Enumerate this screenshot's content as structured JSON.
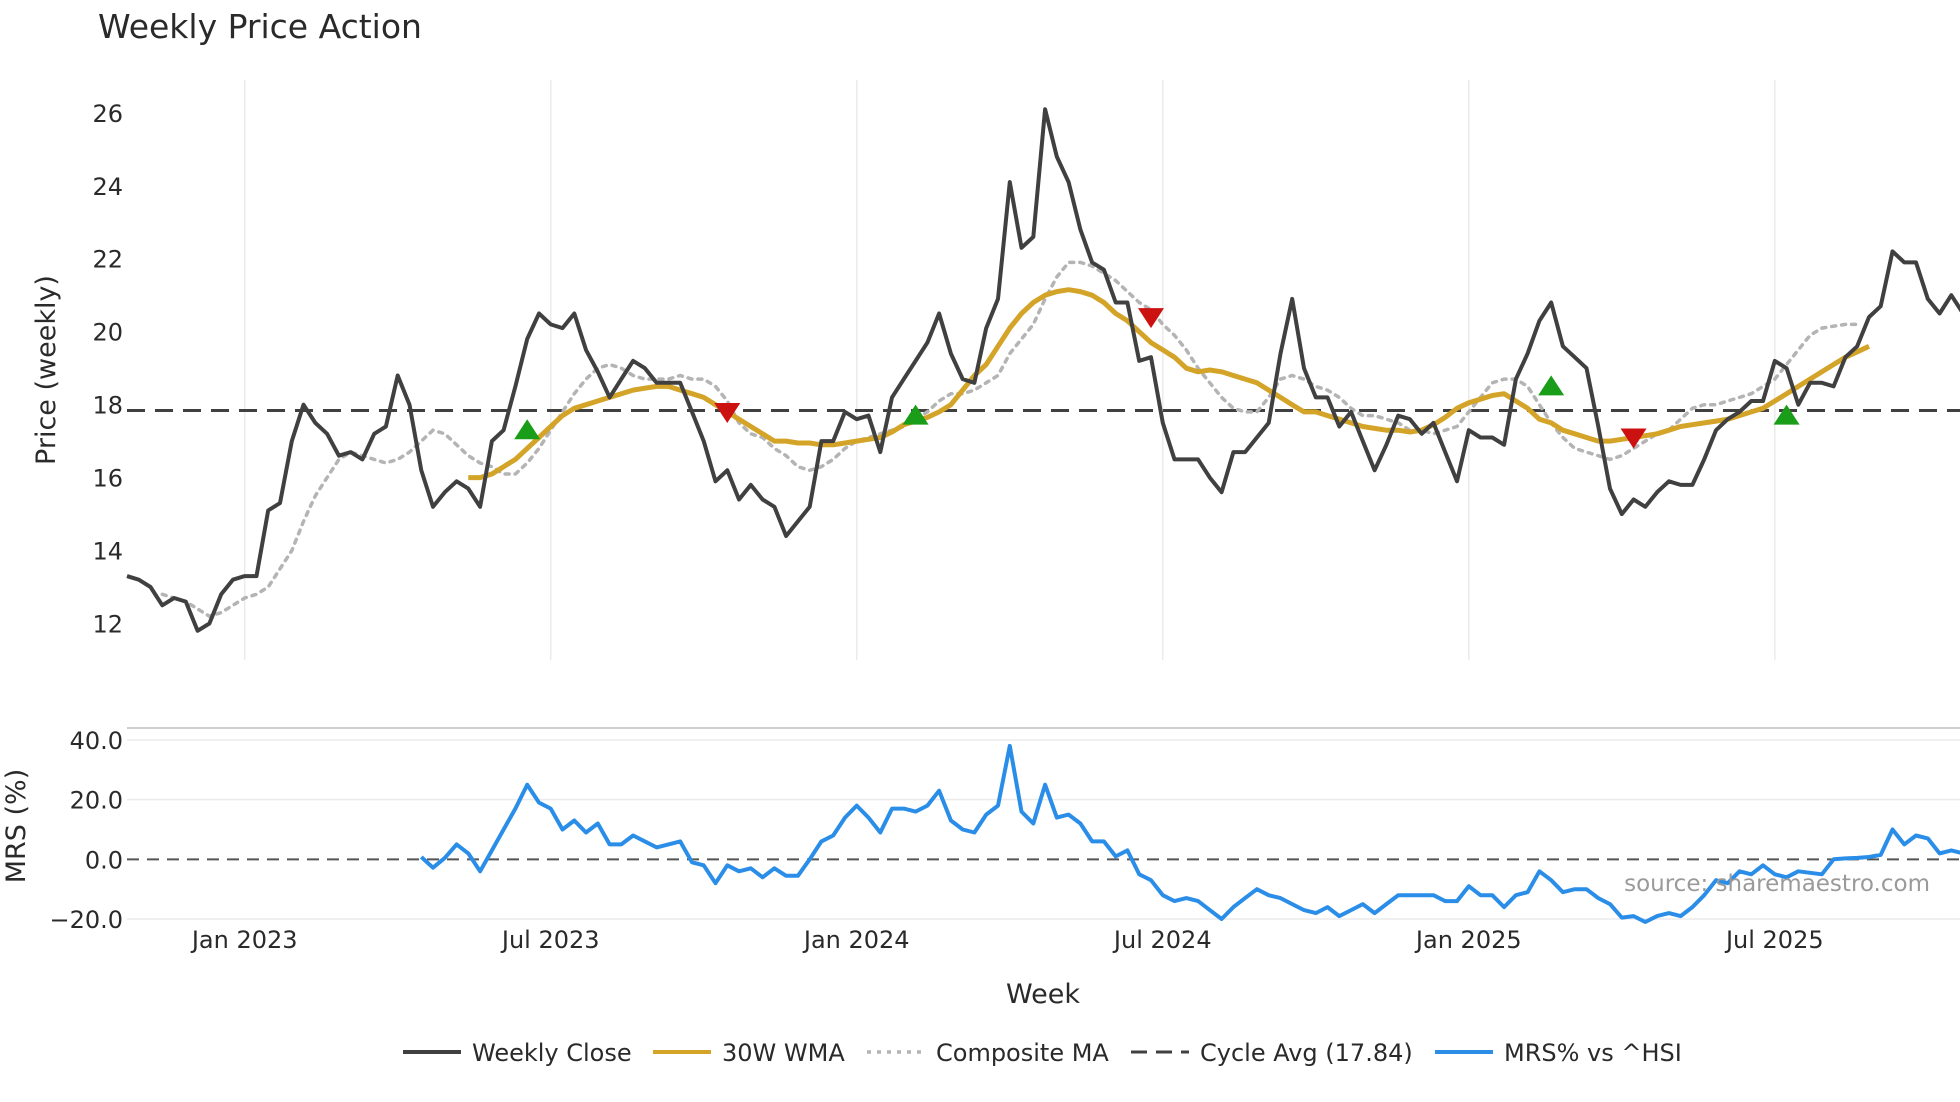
{
  "chart_data": [
    {
      "type": "line",
      "panel": "price",
      "title": "Weekly Price Action",
      "ylabel": "Price (weekly)",
      "xlabel": "Week",
      "ylim": [
        11,
        26.9
      ],
      "yticks": [
        12,
        14,
        16,
        18,
        20,
        22,
        24,
        26
      ],
      "x_tick_labels": [
        "Jan 2023",
        "Jul 2023",
        "Jan 2024",
        "Jul 2024",
        "Jan 2025",
        "Jul 2025"
      ],
      "x_tick_weeks": [
        10,
        36,
        62,
        88,
        114,
        140
      ],
      "cycle_avg": 17.84,
      "series": [
        {
          "name": "Weekly Close",
          "color": "#404040",
          "style": "solid",
          "start_week": 0,
          "values": [
            13.3,
            13.2,
            13.0,
            12.5,
            12.7,
            12.6,
            11.8,
            12.0,
            12.8,
            13.2,
            13.3,
            13.3,
            15.1,
            15.3,
            17.0,
            18.0,
            17.5,
            17.2,
            16.6,
            16.7,
            16.5,
            17.2,
            17.4,
            18.8,
            18.0,
            16.2,
            15.2,
            15.6,
            15.9,
            15.7,
            15.2,
            17.0,
            17.3,
            18.5,
            19.8,
            20.5,
            20.2,
            20.1,
            20.5,
            19.5,
            18.9,
            18.2,
            18.7,
            19.2,
            19.0,
            18.6,
            18.6,
            18.6,
            17.8,
            17.0,
            15.9,
            16.2,
            15.4,
            15.8,
            15.4,
            15.2,
            14.4,
            14.8,
            15.2,
            17.0,
            17.0,
            17.8,
            17.6,
            17.7,
            16.7,
            18.2,
            18.7,
            19.2,
            19.7,
            20.5,
            19.4,
            18.7,
            18.6,
            20.1,
            20.9,
            24.1,
            22.3,
            22.6,
            26.1,
            24.8,
            24.1,
            22.8,
            21.9,
            21.7,
            20.8,
            20.8,
            19.2,
            19.3,
            17.5,
            16.5,
            16.5,
            16.5,
            16.0,
            15.6,
            16.7,
            16.7,
            17.1,
            17.5,
            19.4,
            20.9,
            19.0,
            18.2,
            18.2,
            17.4,
            17.8,
            17.0,
            16.2,
            16.9,
            17.7,
            17.6,
            17.2,
            17.5,
            16.7,
            15.9,
            17.3,
            17.1,
            17.1,
            16.9,
            18.7,
            19.4,
            20.3,
            20.8,
            19.6,
            19.3,
            19.0,
            17.4,
            15.7,
            15.0,
            15.4,
            15.2,
            15.6,
            15.9,
            15.8,
            15.8,
            16.5,
            17.3,
            17.6,
            17.8,
            18.1,
            18.1,
            19.2,
            19.0,
            18.0,
            18.6,
            18.6,
            18.5,
            19.3,
            19.6,
            20.4,
            20.7,
            22.2,
            21.9,
            21.9,
            20.9,
            20.5,
            21.0,
            20.5
          ]
        },
        {
          "name": "30W WMA",
          "color": "#d4a428",
          "style": "solid",
          "start_week": 29,
          "values": [
            16.0,
            16.0,
            16.1,
            16.3,
            16.5,
            16.8,
            17.1,
            17.4,
            17.7,
            17.9,
            18.0,
            18.1,
            18.2,
            18.3,
            18.4,
            18.45,
            18.5,
            18.5,
            18.4,
            18.3,
            18.2,
            18.0,
            17.8,
            17.6,
            17.4,
            17.2,
            17.0,
            17.0,
            16.95,
            16.95,
            16.9,
            16.9,
            16.95,
            17.0,
            17.05,
            17.1,
            17.25,
            17.45,
            17.55,
            17.65,
            17.8,
            18.0,
            18.4,
            18.8,
            19.1,
            19.6,
            20.1,
            20.5,
            20.8,
            21.0,
            21.1,
            21.15,
            21.1,
            21.0,
            20.8,
            20.5,
            20.3,
            20.0,
            19.7,
            19.5,
            19.3,
            19.0,
            18.9,
            18.95,
            18.9,
            18.8,
            18.7,
            18.6,
            18.4,
            18.2,
            18.0,
            17.8,
            17.8,
            17.7,
            17.6,
            17.5,
            17.4,
            17.35,
            17.3,
            17.3,
            17.25,
            17.3,
            17.45,
            17.65,
            17.9,
            18.05,
            18.15,
            18.25,
            18.3,
            18.1,
            17.9,
            17.6,
            17.5,
            17.3,
            17.2,
            17.1,
            17.0,
            17.0,
            17.05,
            17.1,
            17.15,
            17.2,
            17.3,
            17.4,
            17.45,
            17.5,
            17.55,
            17.6,
            17.7,
            17.8,
            17.9,
            18.1,
            18.3,
            18.5,
            18.7,
            18.9,
            19.1,
            19.3,
            19.45,
            19.6
          ]
        },
        {
          "name": "Composite MA",
          "color": "#b4b4b4",
          "style": "dotted",
          "start_week": 3,
          "values": [
            12.8,
            12.7,
            12.6,
            12.4,
            12.2,
            12.3,
            12.5,
            12.7,
            12.8,
            13.0,
            13.5,
            14.0,
            14.8,
            15.5,
            16.0,
            16.5,
            16.7,
            16.6,
            16.5,
            16.4,
            16.5,
            16.7,
            17.0,
            17.3,
            17.2,
            16.9,
            16.6,
            16.4,
            16.3,
            16.1,
            16.1,
            16.4,
            16.8,
            17.3,
            17.8,
            18.3,
            18.7,
            19.0,
            19.1,
            19.0,
            18.8,
            18.7,
            18.7,
            18.7,
            18.8,
            18.7,
            18.7,
            18.5,
            18.1,
            17.5,
            17.2,
            17.1,
            16.8,
            16.6,
            16.3,
            16.2,
            16.3,
            16.5,
            16.8,
            17.0,
            17.1,
            17.2,
            17.3,
            17.4,
            17.6,
            17.8,
            18.1,
            18.3,
            18.3,
            18.4,
            18.6,
            18.8,
            19.4,
            19.8,
            20.2,
            20.9,
            21.5,
            21.9,
            21.9,
            21.8,
            21.6,
            21.4,
            21.1,
            20.8,
            20.6,
            20.2,
            19.9,
            19.5,
            19.0,
            18.6,
            18.2,
            17.9,
            17.8,
            17.8,
            18.2,
            18.7,
            18.8,
            18.7,
            18.5,
            18.4,
            18.2,
            17.9,
            17.7,
            17.7,
            17.6,
            17.5,
            17.3,
            17.3,
            17.2,
            17.3,
            17.4,
            17.8,
            18.2,
            18.6,
            18.7,
            18.7,
            18.5,
            18.0,
            17.5,
            17.1,
            16.8,
            16.7,
            16.6,
            16.5,
            16.6,
            16.8,
            17.0,
            17.2,
            17.3,
            17.6,
            17.9,
            18.0,
            18.0,
            18.1,
            18.2,
            18.3,
            18.5,
            18.7,
            19.1,
            19.5,
            19.9,
            20.1,
            20.15,
            20.2,
            20.2
          ]
        },
        {
          "name": "Cycle Avg (17.84)",
          "color": "#404040",
          "style": "dashed",
          "value": 17.84
        }
      ],
      "buy_signals": [
        {
          "week": 34,
          "price": 17.3
        },
        {
          "week": 67,
          "price": 17.7
        },
        {
          "week": 121,
          "price": 18.5
        },
        {
          "week": 141,
          "price": 17.7
        }
      ],
      "sell_signals": [
        {
          "week": 51,
          "price": 17.8
        },
        {
          "week": 87,
          "price": 20.4
        },
        {
          "week": 128,
          "price": 17.1
        }
      ]
    },
    {
      "type": "line",
      "panel": "mrs",
      "ylabel": "MRS (%)",
      "ylim": [
        -23,
        44
      ],
      "yticks": [
        -20,
        0,
        20,
        40
      ],
      "ytick_labels": [
        "−20.0",
        "0.0",
        "20.0",
        "40.0"
      ],
      "series": [
        {
          "name": "MRS% vs ^HSI",
          "color": "#2a8ee8",
          "style": "solid",
          "start_week": 25,
          "values": [
            0.8,
            -2.8,
            0.5,
            5.0,
            2.0,
            -4.0,
            3.0,
            10.0,
            17.0,
            25.0,
            19.0,
            17.0,
            10.0,
            13.0,
            9.0,
            12.0,
            5.0,
            5.0,
            8.0,
            6.0,
            4.0,
            5.0,
            6.0,
            -1.0,
            -2.0,
            -8.0,
            -2.0,
            -4.0,
            -3.0,
            -6.0,
            -3.0,
            -5.5,
            -5.5,
            0.0,
            6.0,
            8.0,
            14.0,
            18.0,
            14.0,
            9.0,
            17.0,
            17.0,
            16.0,
            18.0,
            23.0,
            13.0,
            10.0,
            9.0,
            15.0,
            18.0,
            38.0,
            16.0,
            12.0,
            25.0,
            14.0,
            15.0,
            12.0,
            6.0,
            6.0,
            1.0,
            3.0,
            -5.0,
            -7.0,
            -12.0,
            -14.0,
            -13.0,
            -14.0,
            -17.0,
            -20.0,
            -16.0,
            -13.0,
            -10.0,
            -12.0,
            -13.0,
            -15.0,
            -17.0,
            -18.0,
            -16.0,
            -19.0,
            -17.0,
            -15.0,
            -18.0,
            -15.0,
            -12.0,
            -12.0,
            -12.0,
            -12.0,
            -14.0,
            -14.0,
            -9.0,
            -12.0,
            -12.0,
            -16.0,
            -12.0,
            -11.0,
            -4.0,
            -7.0,
            -11.0,
            -10.0,
            -10.0,
            -13.0,
            -15.0,
            -19.5,
            -19.0,
            -21.0,
            -19.0,
            -18.0,
            -19.0,
            -16.0,
            -12.0,
            -7.0,
            -8.0,
            -4.0,
            -5.0,
            -2.0,
            -5.0,
            -6.0,
            -4.0,
            -4.5,
            -5.0,
            0.0,
            0.3,
            0.5,
            0.8,
            1.5,
            10.0,
            5.0,
            8.0,
            7.0,
            2.0,
            3.0,
            2.0
          ]
        }
      ],
      "annotation": "source: sharemaestro.com"
    }
  ],
  "legend": [
    {
      "label": "Weekly Close",
      "style": "solid",
      "color": "#404040"
    },
    {
      "label": "30W WMA",
      "style": "solid",
      "color": "#d4a428"
    },
    {
      "label": "Composite MA",
      "style": "dotted",
      "color": "#b4b4b4"
    },
    {
      "label": "Cycle Avg (17.84)",
      "style": "dashed",
      "color": "#404040"
    },
    {
      "label": "MRS% vs ^HSI",
      "style": "solid",
      "color": "#2a8ee8"
    }
  ],
  "colors": {
    "buy": "#1a9e1a",
    "sell": "#cc1111",
    "grid": "#ebebeb",
    "text": "#2a2a2a",
    "annotation": "#9a9a9a"
  }
}
